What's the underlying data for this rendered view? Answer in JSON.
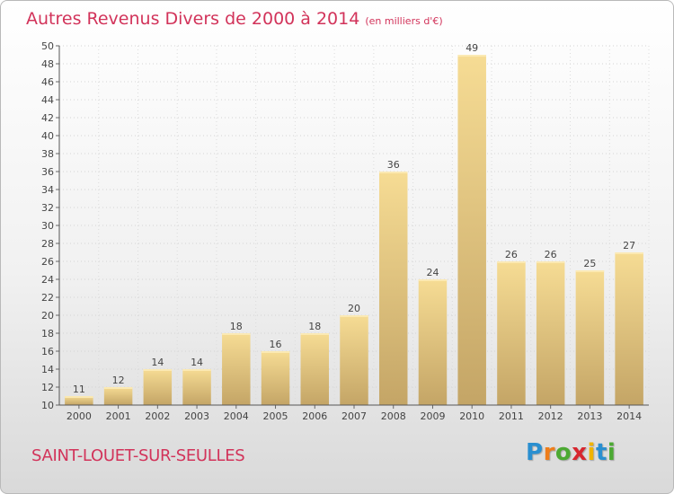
{
  "title": "Autres Revenus Divers de 2000 à 2014",
  "unit": "(en milliers d'€)",
  "commune": "SAINT-LOUET-SUR-SEULLES",
  "logo": {
    "letters": [
      "P",
      "r",
      "o",
      "x",
      "i",
      "t",
      "i"
    ],
    "colors": [
      "#2a8fd0",
      "#ee7d1a",
      "#4ca933",
      "#d7262e",
      "#f0b400",
      "#2a8fd0",
      "#4ca933"
    ]
  },
  "colors": {
    "bar_top": "#f6dc94",
    "bar_bottom": "#c4a566",
    "title": "#d2335a"
  },
  "chart_data": {
    "type": "bar",
    "categories": [
      "2000",
      "2001",
      "2002",
      "2003",
      "2004",
      "2005",
      "2006",
      "2007",
      "2008",
      "2009",
      "2010",
      "2011",
      "2012",
      "2013",
      "2014"
    ],
    "values": [
      11,
      12,
      14,
      14,
      18,
      16,
      18,
      20,
      36,
      24,
      49,
      26,
      26,
      25,
      27
    ],
    "ylim": [
      10,
      50
    ],
    "yticks": [
      10,
      12,
      14,
      16,
      18,
      20,
      22,
      24,
      26,
      28,
      30,
      32,
      34,
      36,
      38,
      40,
      42,
      44,
      46,
      48,
      50
    ],
    "grid": true,
    "legend": "none"
  }
}
